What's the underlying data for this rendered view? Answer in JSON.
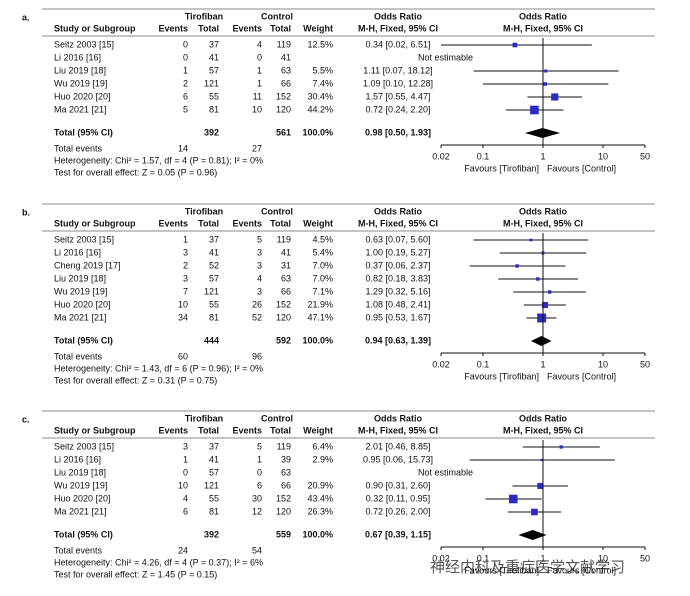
{
  "chart_data": [
    {
      "type": "forest",
      "panel": "a.",
      "group1": "Tirofiban",
      "group2": "Control",
      "or_header": "Odds Ratio",
      "columns": [
        "Study or Subgroup",
        "Events",
        "Total",
        "Events",
        "Total",
        "Weight",
        "M-H, Fixed, 95% CI",
        "M-H, Fixed, 95% CI"
      ],
      "categories": [
        "Seitz 2003 [15]",
        "Li 2016 [16]",
        "Liu 2019 [18]",
        "Wu 2019 [19]",
        "Huo 2020 [20]",
        "Ma 2021 [21]"
      ],
      "events1": [
        0,
        0,
        1,
        2,
        6,
        5
      ],
      "totals1": [
        37,
        41,
        57,
        121,
        55,
        81
      ],
      "events2": [
        4,
        0,
        1,
        1,
        11,
        10
      ],
      "totals2": [
        119,
        41,
        63,
        66,
        152,
        120
      ],
      "weights": [
        12.5,
        null,
        5.5,
        7.4,
        30.4,
        44.2
      ],
      "weight_labels": [
        "12.5%",
        null,
        "5.5%",
        "7.4%",
        "30.4%",
        "44.2%"
      ],
      "values": [
        0.34,
        null,
        1.11,
        1.09,
        1.57,
        0.72
      ],
      "ci_low": [
        0.02,
        null,
        0.07,
        0.1,
        0.55,
        0.24
      ],
      "ci_high": [
        6.51,
        null,
        18.12,
        12.28,
        4.47,
        2.2
      ],
      "or_labels": [
        "0.34 [0.02, 6.51]",
        "Not estimable",
        "1.11 [0.07, 18.12]",
        "1.09 [0.10, 12.28]",
        "1.57 [0.55, 4.47]",
        "0.72 [0.24, 2.20]"
      ],
      "total": {
        "label": "Total (95% CI)",
        "total1": 392,
        "total2": 561,
        "weight_label": "100.0%",
        "value": 0.98,
        "ci_low": 0.5,
        "ci_high": 1.93,
        "or_label": "0.98 [0.50, 1.93]"
      },
      "total_events_label": "Total events",
      "total_events1": 14,
      "total_events2": 27,
      "heterogeneity": "Heterogeneity: Chi² = 1.57, df = 4 (P = 0.81); I² = 0%",
      "overall_test": "Test for overall effect: Z = 0.05 (P = 0.96)",
      "log_scale": true,
      "xlim": [
        0.02,
        50
      ],
      "xticks": [
        0.02,
        0.1,
        1,
        10,
        50
      ],
      "favours": [
        "Favours [Tirofiban]",
        "Favours [Control]"
      ],
      "box_color": "#2b2bc4"
    },
    {
      "type": "forest",
      "panel": "b.",
      "group1": "Tirofiban",
      "group2": "Control",
      "or_header": "Odds Ratio",
      "columns": [
        "Study or Subgroup",
        "Events",
        "Total",
        "Events",
        "Total",
        "Weight",
        "M-H, Fixed, 95% CI",
        "M-H, Fixed, 95% CI"
      ],
      "categories": [
        "Seitz 2003 [15]",
        "Li 2016 [16]",
        "Cheng 2019 [17]",
        "Liu 2019 [18]",
        "Wu 2019 [19]",
        "Huo 2020 [20]",
        "Ma 2021 [21]"
      ],
      "events1": [
        1,
        3,
        2,
        3,
        7,
        10,
        34
      ],
      "totals1": [
        37,
        41,
        52,
        57,
        121,
        55,
        81
      ],
      "events2": [
        5,
        3,
        3,
        4,
        3,
        26,
        52
      ],
      "totals2": [
        119,
        41,
        31,
        63,
        66,
        152,
        120
      ],
      "weights": [
        4.5,
        5.4,
        7.0,
        7.0,
        7.1,
        21.9,
        47.1
      ],
      "weight_labels": [
        "4.5%",
        "5.4%",
        "7.0%",
        "7.0%",
        "7.1%",
        "21.9%",
        "47.1%"
      ],
      "values": [
        0.63,
        1.0,
        0.37,
        0.82,
        1.29,
        1.08,
        0.95
      ],
      "ci_low": [
        0.07,
        0.19,
        0.06,
        0.18,
        0.32,
        0.48,
        0.53
      ],
      "ci_high": [
        5.6,
        5.27,
        2.37,
        3.83,
        5.16,
        2.41,
        1.67
      ],
      "or_labels": [
        "0.63 [0.07, 5.60]",
        "1.00 [0.19, 5.27]",
        "0.37 [0.06, 2.37]",
        "0.82 [0.18, 3.83]",
        "1.29 [0.32, 5.16]",
        "1.08 [0.48, 2.41]",
        "0.95 [0.53, 1.67]"
      ],
      "total": {
        "label": "Total (95% CI)",
        "total1": 444,
        "total2": 592,
        "weight_label": "100.0%",
        "value": 0.94,
        "ci_low": 0.63,
        "ci_high": 1.39,
        "or_label": "0.94 [0.63, 1.39]"
      },
      "total_events_label": "Total events",
      "total_events1": 60,
      "total_events2": 96,
      "heterogeneity": "Heterogeneity: Chi² = 1.43, df = 6 (P = 0.96); I² = 0%",
      "overall_test": "Test for overall effect: Z = 0.31 (P = 0.75)",
      "log_scale": true,
      "xlim": [
        0.02,
        50
      ],
      "xticks": [
        0.02,
        0.1,
        1,
        10,
        50
      ],
      "favours": [
        "Favours [Tirofiban]",
        "Favours [Control]"
      ],
      "box_color": "#2b2bc4"
    },
    {
      "type": "forest",
      "panel": "c.",
      "group1": "Tirofiban",
      "group2": "Control",
      "or_header": "Odds Ratio",
      "columns": [
        "Study or Subgroup",
        "Events",
        "Total",
        "Events",
        "Total",
        "Weight",
        "M-H, Fixed, 95% CI",
        "M-H, Fixed, 95% CI"
      ],
      "categories": [
        "Seitz 2003 [15]",
        "Li 2016 [16]",
        "Liu 2019 [18]",
        "Wu 2019 [19]",
        "Huo 2020 [20]",
        "Ma 2021 [21]"
      ],
      "events1": [
        3,
        1,
        0,
        10,
        4,
        6
      ],
      "totals1": [
        37,
        41,
        57,
        121,
        55,
        81
      ],
      "events2": [
        5,
        1,
        0,
        6,
        30,
        12
      ],
      "totals2": [
        119,
        39,
        63,
        66,
        152,
        120
      ],
      "weights": [
        6.4,
        2.9,
        null,
        20.9,
        43.4,
        26.3
      ],
      "weight_labels": [
        "6.4%",
        "2.9%",
        null,
        "20.9%",
        "43.4%",
        "26.3%"
      ],
      "values": [
        2.01,
        0.95,
        null,
        0.9,
        0.32,
        0.72
      ],
      "ci_low": [
        0.46,
        0.06,
        null,
        0.31,
        0.11,
        0.26
      ],
      "ci_high": [
        8.85,
        15.73,
        null,
        2.6,
        0.95,
        2.0
      ],
      "or_labels": [
        "2.01 [0.46, 8.85]",
        "0.95 [0.06, 15.73]",
        "Not estimable",
        "0.90 [0.31, 2.60]",
        "0.32 [0.11, 0.95]",
        "0.72 [0.26, 2.00]"
      ],
      "total": {
        "label": "Total (95% CI)",
        "total1": 392,
        "total2": 559,
        "weight_label": "100.0%",
        "value": 0.67,
        "ci_low": 0.39,
        "ci_high": 1.15,
        "or_label": "0.67 [0.39, 1.15]"
      },
      "total_events_label": "Total events",
      "total_events1": 24,
      "total_events2": 54,
      "heterogeneity": "Heterogeneity: Chi² = 4.26, df = 4 (P = 0.37); I² = 6%",
      "overall_test": "Test for overall effect: Z = 1.45 (P = 0.15)",
      "log_scale": true,
      "xlim": [
        0.02,
        50
      ],
      "xticks": [
        0.02,
        0.1,
        1,
        10,
        50
      ],
      "favours": [
        "Favours [Tirofiban]",
        "Favours [Control]"
      ],
      "box_color": "#2b2bc4"
    }
  ],
  "watermark": "神经内科及重症医学文献学习"
}
